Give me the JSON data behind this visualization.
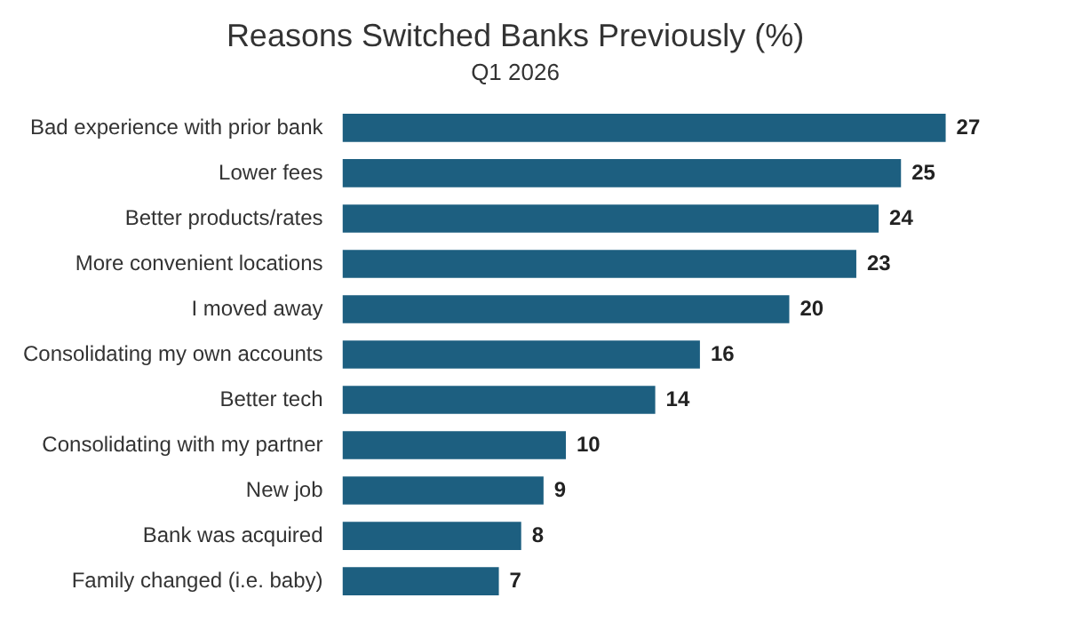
{
  "chart_data": {
    "type": "bar",
    "orientation": "horizontal",
    "title": "Reasons Switched Banks Previously (%)",
    "subtitle": "Q1 2026",
    "categories": [
      "Bad experience with prior bank",
      "Lower fees",
      "Better products/rates",
      "More convenient locations",
      "I moved away",
      "Consolidating my own accounts",
      "Better tech",
      "Consolidating with my partner",
      "New job",
      "Bank was acquired",
      "Family changed (i.e. baby)"
    ],
    "values": [
      27,
      25,
      24,
      23,
      20,
      16,
      14,
      10,
      9,
      8,
      7
    ],
    "color": "#1d5f80",
    "data_labels": true,
    "legend": false
  }
}
